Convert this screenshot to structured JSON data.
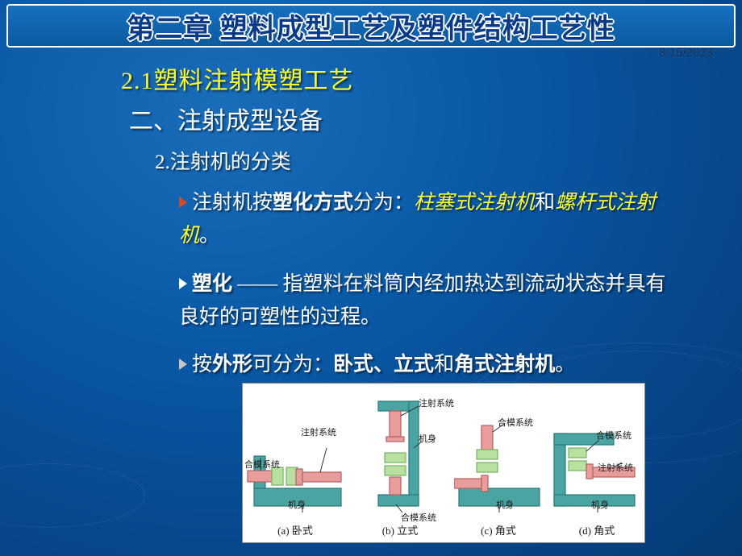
{
  "header": {
    "title": "第二章 塑料成型工艺及塑件结构工艺性",
    "date": "8/15/2023"
  },
  "section": {
    "h21": "2.1塑料注射模塑工艺",
    "h2two": "二、注射成型设备",
    "h2sub": "2.注射机的分类"
  },
  "bullets": {
    "b1_prefix": "注射机按",
    "b1_bold": "塑化方式",
    "b1_mid": "分为：",
    "b1_y1": "柱塞式注射机",
    "b1_and": "和",
    "b1_y2": "螺杆式注射机",
    "b1_end": "。",
    "b2_head": "塑化",
    "b2_dash": " —— ",
    "b2_body": "指塑料在料筒内经加热达到流动状态并具有良好的可塑性的过程。",
    "b3_prefix": "按",
    "b3_bold1": "外形",
    "b3_mid": "可分为：",
    "b3_bold2": "卧式、立式",
    "b3_and": "和",
    "b3_bold3": "角式注射机",
    "b3_end": "。"
  },
  "diagram": {
    "captions": [
      "(a) 卧式",
      "(b) 立式",
      "(c) 角式",
      "(d) 角式"
    ],
    "labels": {
      "inject_sys": "注射系统",
      "clamp_sys": "合模系统",
      "body": "机身"
    },
    "colors": {
      "frame": "#4aa5a2",
      "frame_stroke": "#2a7a78",
      "inject": "#e89c9c",
      "inject_stroke": "#b56060",
      "clamp": "#b8e0a0",
      "clamp_stroke": "#7ab060",
      "line": "#333333"
    }
  }
}
